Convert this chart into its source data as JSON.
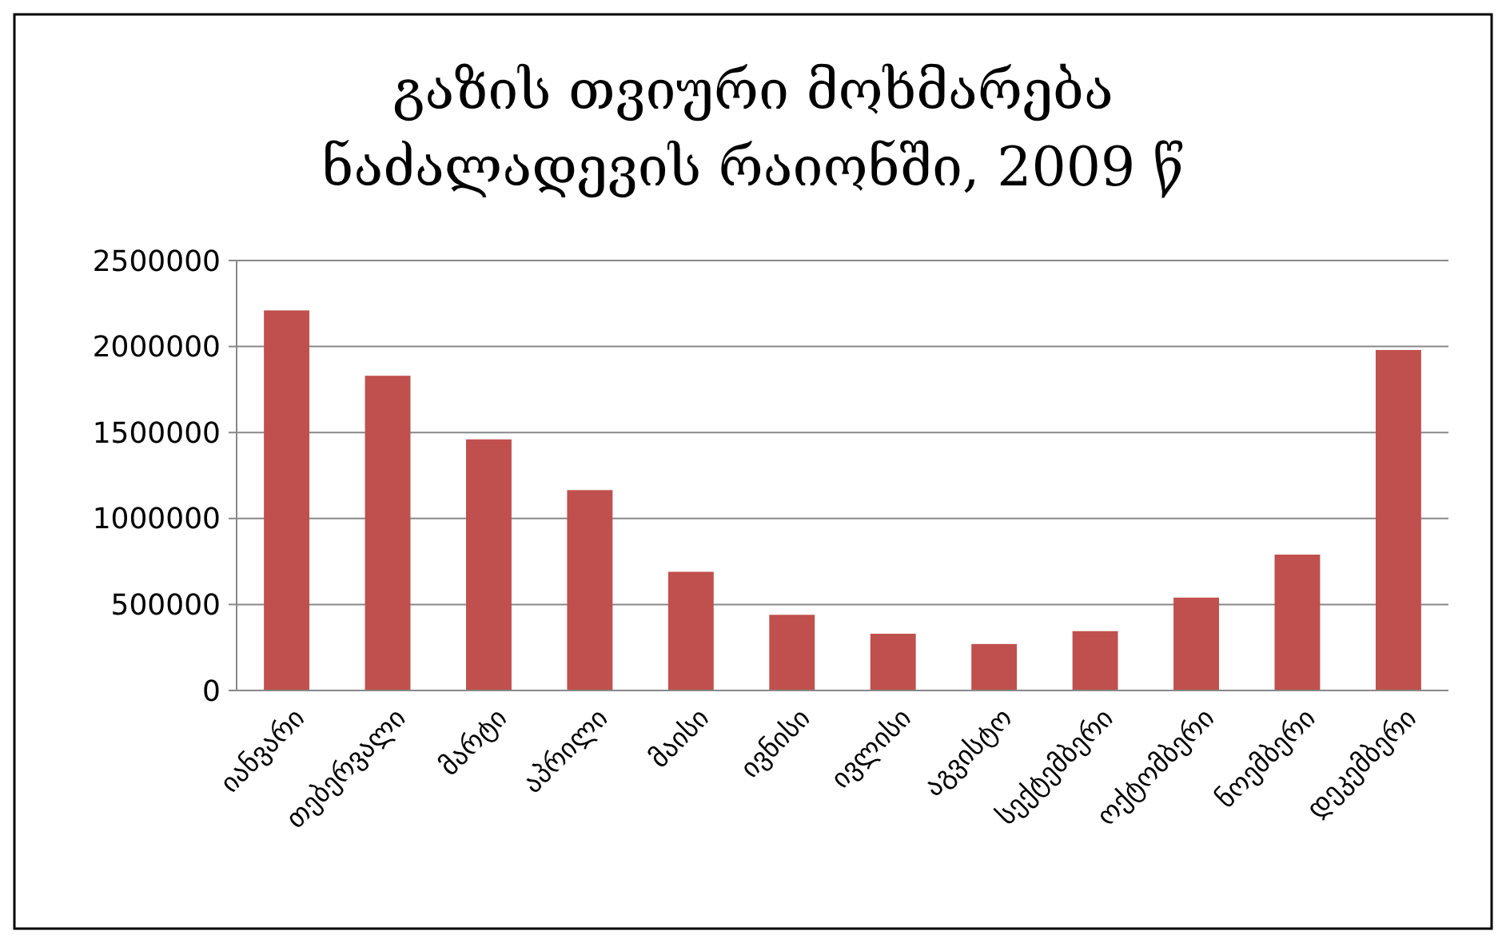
{
  "chart_data": {
    "type": "bar",
    "title": "გაზის თვიური მოხმარება\nნაძალადევის რაიონში, 2009 წ",
    "categories": [
      "იანვარი",
      "თებერვალი",
      "მარტი",
      "აპრილი",
      "მაისი",
      "ივნისი",
      "ივლისი",
      "აგვისტო",
      "სექტემბერი",
      "ოქტომბერი",
      "ნოემბერი",
      "დეკემბერი"
    ],
    "values": [
      2210000,
      1830000,
      1460000,
      1165000,
      690000,
      440000,
      330000,
      270000,
      345000,
      540000,
      790000,
      1980000
    ],
    "color": "#c0504d",
    "ylim": [
      0,
      2500000
    ],
    "yticks": [
      0,
      500000,
      1000000,
      1500000,
      2000000,
      2500000
    ],
    "grid": "y"
  }
}
